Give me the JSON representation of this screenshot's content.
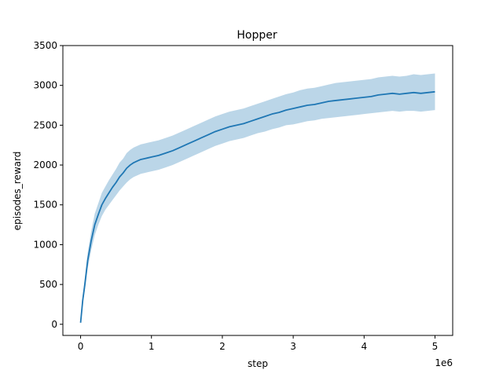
{
  "chart_data": {
    "type": "line",
    "title": "Hopper",
    "xlabel": "step",
    "ylabel": "episodes_reward",
    "x_offset_label": "1e6",
    "xlim": [
      -0.25,
      5.25
    ],
    "ylim": [
      -140,
      3500
    ],
    "x_ticks": [
      0,
      1,
      2,
      3,
      4,
      5
    ],
    "x_tick_labels": [
      "0",
      "1",
      "2",
      "3",
      "4",
      "5"
    ],
    "y_ticks": [
      0,
      500,
      1000,
      1500,
      2000,
      2500,
      3000,
      3500
    ],
    "y_tick_labels": [
      "0",
      "500",
      "1000",
      "1500",
      "2000",
      "2500",
      "3000",
      "3500"
    ],
    "grid": false,
    "line_color": "#1f77b4",
    "band_color": "#1f77b4",
    "band_opacity": 0.3,
    "series": [
      {
        "x": [
          0,
          0.03,
          0.06,
          0.1,
          0.15,
          0.2,
          0.25,
          0.3,
          0.35,
          0.4,
          0.45,
          0.5,
          0.55,
          0.6,
          0.65,
          0.7,
          0.75,
          0.8,
          0.85,
          0.9,
          0.95,
          1.0,
          1.1,
          1.2,
          1.3,
          1.4,
          1.5,
          1.6,
          1.7,
          1.8,
          1.9,
          2.0,
          2.1,
          2.2,
          2.3,
          2.4,
          2.5,
          2.6,
          2.7,
          2.8,
          2.9,
          3.0,
          3.1,
          3.2,
          3.3,
          3.4,
          3.5,
          3.6,
          3.7,
          3.8,
          3.9,
          4.0,
          4.1,
          4.2,
          4.3,
          4.4,
          4.5,
          4.6,
          4.7,
          4.8,
          4.9,
          5.0
        ],
        "y": [
          20,
          300,
          500,
          800,
          1050,
          1250,
          1380,
          1500,
          1580,
          1650,
          1720,
          1780,
          1850,
          1900,
          1960,
          2000,
          2030,
          2050,
          2070,
          2080,
          2090,
          2100,
          2120,
          2150,
          2180,
          2220,
          2260,
          2300,
          2340,
          2380,
          2420,
          2450,
          2480,
          2500,
          2520,
          2550,
          2580,
          2610,
          2640,
          2660,
          2690,
          2710,
          2730,
          2750,
          2760,
          2780,
          2800,
          2810,
          2820,
          2830,
          2840,
          2850,
          2860,
          2880,
          2890,
          2900,
          2890,
          2900,
          2910,
          2900,
          2910,
          2920
        ],
        "y_lower": [
          10,
          250,
          420,
          700,
          930,
          1120,
          1250,
          1360,
          1440,
          1500,
          1560,
          1620,
          1680,
          1730,
          1780,
          1820,
          1850,
          1870,
          1890,
          1900,
          1910,
          1920,
          1940,
          1970,
          2000,
          2040,
          2080,
          2120,
          2160,
          2200,
          2240,
          2270,
          2300,
          2320,
          2340,
          2370,
          2400,
          2420,
          2450,
          2470,
          2500,
          2510,
          2530,
          2550,
          2560,
          2580,
          2590,
          2600,
          2610,
          2620,
          2630,
          2640,
          2650,
          2660,
          2670,
          2680,
          2670,
          2680,
          2680,
          2670,
          2680,
          2690
        ],
        "y_upper": [
          35,
          360,
          590,
          900,
          1170,
          1390,
          1520,
          1650,
          1730,
          1810,
          1880,
          1950,
          2030,
          2080,
          2150,
          2190,
          2220,
          2240,
          2260,
          2270,
          2280,
          2290,
          2310,
          2340,
          2370,
          2410,
          2450,
          2490,
          2530,
          2570,
          2610,
          2640,
          2670,
          2690,
          2710,
          2740,
          2770,
          2800,
          2830,
          2860,
          2890,
          2910,
          2940,
          2960,
          2970,
          2990,
          3010,
          3030,
          3040,
          3050,
          3060,
          3070,
          3080,
          3100,
          3110,
          3120,
          3110,
          3120,
          3140,
          3130,
          3140,
          3150
        ]
      }
    ]
  }
}
